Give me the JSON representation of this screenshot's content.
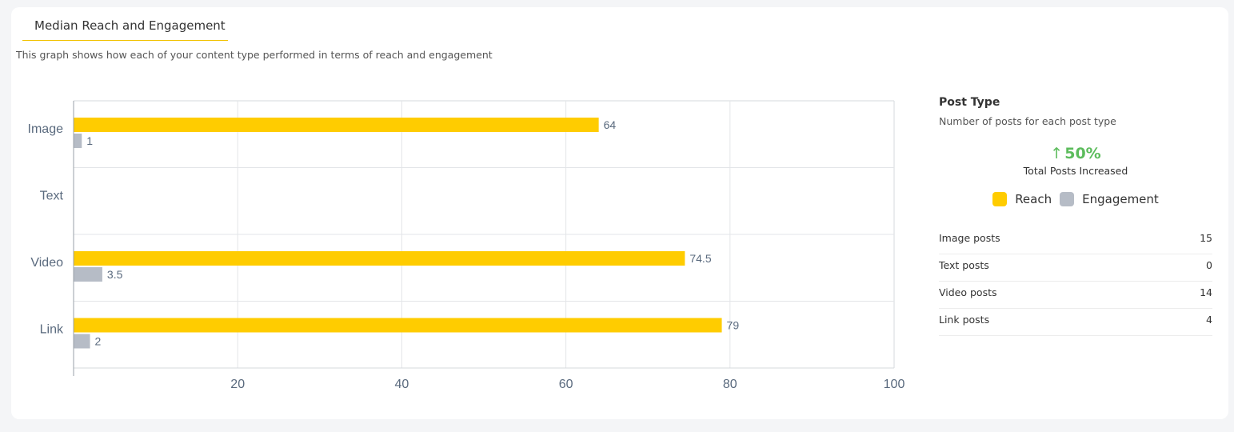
{
  "section": {
    "tab_title": "Median Reach and Engagement",
    "subtitle": "This graph shows how each of your content type performed in terms of reach and engagement"
  },
  "colors": {
    "reach": "#ffcc00",
    "engagement": "#b6bcc6"
  },
  "chart_data": {
    "type": "bar",
    "orientation": "horizontal",
    "categories": [
      "Image",
      "Text",
      "Video",
      "Link"
    ],
    "series": [
      {
        "name": "Reach",
        "values": [
          64,
          null,
          74.5,
          79
        ]
      },
      {
        "name": "Engagement",
        "values": [
          1,
          null,
          3.5,
          2
        ]
      }
    ],
    "xlim": [
      0,
      100
    ],
    "xticks": [
      20,
      40,
      60,
      80,
      100
    ],
    "grid": true,
    "legend": "right"
  },
  "post_type": {
    "title": "Post Type",
    "subtitle": "Number of posts for each post type",
    "kpi_arrow": "↑",
    "kpi_value": "50%",
    "kpi_caption": "Total Posts Increased",
    "legend": [
      {
        "label": "Reach",
        "color": "#ffcc00"
      },
      {
        "label": "Engagement",
        "color": "#b6bcc6"
      }
    ],
    "rows": [
      {
        "label": "Image posts",
        "value": "15"
      },
      {
        "label": "Text posts",
        "value": "0"
      },
      {
        "label": "Video posts",
        "value": "14"
      },
      {
        "label": "Link posts",
        "value": "4"
      }
    ]
  }
}
